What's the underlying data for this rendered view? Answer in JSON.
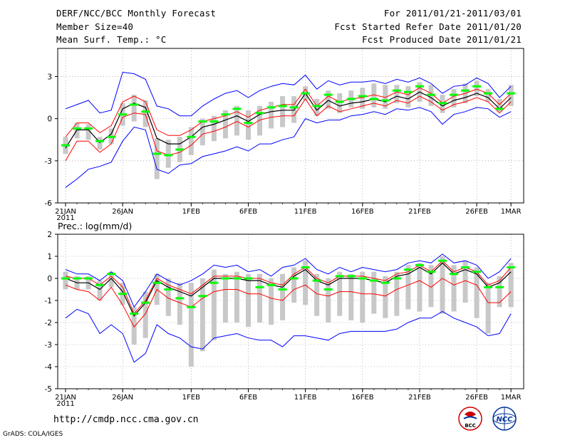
{
  "header": {
    "title": "DERF/NCC/BCC Monthly Forecast",
    "member_size": "Member Size=40",
    "variable": "Mean Surf. Temp.: °C",
    "period": "For 2011/01/21-2011/03/01",
    "start_date": "Fcst Started Refer Date 2011/01/20",
    "produced_date": "Fcst Produced Date 2011/01/21"
  },
  "footer": {
    "url": "http://cmdp.ncc.cma.gov.cn",
    "credit": "GrADS: COLA/IGES",
    "logo_bcc": "BCC",
    "logo_ncc": "NCC"
  },
  "colors": {
    "envelope": "#0000ff",
    "spread": "#ff0000",
    "mean": "#000000",
    "box": "#c8c8c8",
    "median": "#00ff00",
    "grid": "#888888"
  },
  "chart_data": [
    {
      "type": "line",
      "title": "Mean Surf. Temp.: °C",
      "ylim": [
        -6,
        5
      ],
      "yticks": [
        -6,
        -3,
        0,
        3
      ],
      "x_tick_labels": [
        "21JAN",
        "26JAN",
        "1FEB",
        "6FEB",
        "11FEB",
        "16FEB",
        "21FEB",
        "26FEB",
        "1MAR"
      ],
      "x_tick_day_index": [
        0,
        5,
        11,
        16,
        21,
        26,
        31,
        36,
        39
      ],
      "first_tick_year": "2011",
      "days": 40,
      "series": [
        {
          "name": "max",
          "values": [
            0.7,
            1.0,
            1.3,
            0.4,
            0.6,
            3.3,
            3.2,
            2.8,
            0.9,
            0.7,
            0.2,
            0.2,
            0.9,
            1.4,
            1.8,
            2.0,
            1.5,
            2.0,
            2.3,
            2.5,
            2.4,
            3.1,
            2.1,
            2.7,
            2.4,
            2.6,
            2.6,
            2.7,
            2.5,
            2.8,
            2.6,
            2.9,
            2.5,
            1.8,
            2.3,
            2.4,
            2.9,
            2.5,
            1.5,
            2.3
          ]
        },
        {
          "name": "upper",
          "values": [
            -1.3,
            -0.3,
            -0.3,
            -1.0,
            -0.5,
            1.2,
            1.6,
            1.2,
            -0.8,
            -1.2,
            -1.2,
            -0.8,
            -0.2,
            0.0,
            0.2,
            0.5,
            0.1,
            0.6,
            0.8,
            1.0,
            1.0,
            2.1,
            0.9,
            1.6,
            1.2,
            1.4,
            1.5,
            1.7,
            1.5,
            1.9,
            1.7,
            2.2,
            1.8,
            1.1,
            1.6,
            1.8,
            2.1,
            1.8,
            1.0,
            1.8
          ]
        },
        {
          "name": "mean",
          "values": [
            -2.1,
            -0.8,
            -0.8,
            -1.7,
            -1.1,
            0.7,
            1.1,
            0.8,
            -1.4,
            -1.8,
            -1.8,
            -1.3,
            -0.6,
            -0.4,
            -0.1,
            0.2,
            -0.2,
            0.3,
            0.5,
            0.6,
            0.6,
            1.8,
            0.6,
            1.3,
            0.9,
            1.1,
            1.2,
            1.4,
            1.2,
            1.6,
            1.4,
            1.9,
            1.5,
            0.9,
            1.3,
            1.5,
            1.8,
            1.5,
            0.7,
            1.5
          ]
        },
        {
          "name": "lower",
          "values": [
            -3.0,
            -1.6,
            -1.6,
            -2.4,
            -1.8,
            0.1,
            0.4,
            0.3,
            -2.3,
            -2.6,
            -2.4,
            -1.9,
            -1.1,
            -0.9,
            -0.6,
            -0.2,
            -0.6,
            -0.1,
            0.1,
            0.2,
            0.2,
            1.4,
            0.2,
            0.9,
            0.5,
            0.7,
            0.9,
            1.1,
            0.9,
            1.3,
            1.1,
            1.6,
            1.2,
            0.6,
            1.0,
            1.2,
            1.5,
            1.2,
            0.4,
            1.2
          ]
        },
        {
          "name": "min",
          "values": [
            -4.9,
            -4.3,
            -3.6,
            -3.4,
            -3.1,
            -1.6,
            -0.6,
            -0.8,
            -3.6,
            -3.9,
            -3.3,
            -3.2,
            -2.7,
            -2.5,
            -2.3,
            -2.0,
            -2.3,
            -1.8,
            -1.8,
            -1.5,
            -1.3,
            0.0,
            -0.3,
            -0.1,
            -0.1,
            0.2,
            0.3,
            0.5,
            0.3,
            0.7,
            0.6,
            0.8,
            0.5,
            -0.4,
            0.3,
            0.5,
            0.8,
            0.7,
            0.1,
            0.5
          ]
        },
        {
          "name": "box_top",
          "values": [
            -1.3,
            -0.3,
            -0.4,
            -1.3,
            -0.7,
            1.1,
            1.7,
            1.3,
            -1.4,
            -1.5,
            -1.3,
            -0.6,
            0.0,
            0.2,
            0.6,
            0.9,
            0.6,
            0.9,
            1.2,
            1.6,
            1.6,
            2.3,
            1.4,
            2.0,
            1.8,
            2.0,
            2.2,
            2.5,
            2.4,
            2.4,
            2.3,
            2.6,
            2.4,
            1.7,
            2.1,
            2.5,
            2.7,
            2.1,
            1.4,
            2.4
          ]
        },
        {
          "name": "box_bottom",
          "values": [
            -2.5,
            -1.4,
            -1.5,
            -2.2,
            -1.8,
            -0.5,
            -0.2,
            -0.6,
            -4.3,
            -3.5,
            -3.1,
            -2.6,
            -1.9,
            -1.6,
            -1.4,
            -1.2,
            -1.5,
            -1.2,
            -0.7,
            -0.6,
            -0.3,
            1.3,
            0.2,
            0.7,
            0.4,
            0.8,
            0.7,
            0.8,
            0.7,
            1.1,
            0.8,
            1.2,
            0.9,
            0.4,
            0.8,
            1.1,
            1.6,
            1.2,
            0.5,
            0.9
          ]
        },
        {
          "name": "median",
          "values": [
            -1.9,
            -0.7,
            -0.7,
            -1.6,
            -1.3,
            0.3,
            1.0,
            0.5,
            -2.5,
            -2.6,
            -2.2,
            -1.3,
            -0.2,
            -0.2,
            0.3,
            0.7,
            -0.3,
            0.4,
            0.8,
            0.9,
            0.8,
            1.8,
            0.9,
            1.7,
            1.2,
            1.4,
            1.6,
            1.4,
            1.3,
            2.0,
            1.9,
            2.3,
            1.7,
            1.1,
            1.7,
            2.0,
            2.3,
            1.8,
            0.7,
            1.8
          ]
        }
      ]
    },
    {
      "type": "line",
      "title": "Prec.: log(mm/d)",
      "ylim": [
        -5,
        2
      ],
      "yticks": [
        -5,
        -4,
        -3,
        -2,
        -1,
        0,
        1,
        2
      ],
      "x_tick_labels": [
        "21JAN",
        "26JAN",
        "1FEB",
        "6FEB",
        "11FEB",
        "16FEB",
        "21FEB",
        "26FEB",
        "1MAR"
      ],
      "x_tick_day_index": [
        0,
        5,
        11,
        16,
        21,
        26,
        31,
        36,
        39
      ],
      "first_tick_year": "2011",
      "days": 40,
      "series": [
        {
          "name": "max",
          "values": [
            0.4,
            0.2,
            0.2,
            -0.1,
            0.3,
            -0.1,
            -1.3,
            -0.6,
            0.2,
            -0.1,
            -0.3,
            -0.1,
            0.2,
            0.6,
            0.5,
            0.6,
            0.3,
            0.4,
            0.1,
            0.5,
            0.6,
            0.9,
            0.4,
            0.2,
            0.5,
            0.3,
            0.5,
            0.4,
            0.3,
            0.4,
            0.7,
            0.8,
            0.7,
            1.1,
            0.7,
            0.8,
            0.6,
            0.0,
            0.3,
            0.9
          ]
        },
        {
          "name": "upper",
          "values": [
            0.1,
            0.0,
            0.0,
            -0.3,
            0.1,
            -0.4,
            -1.6,
            -1.0,
            0.0,
            -0.3,
            -0.5,
            -0.7,
            -0.3,
            0.1,
            0.1,
            0.1,
            0.0,
            0.0,
            -0.2,
            -0.3,
            0.2,
            0.5,
            0.0,
            -0.2,
            0.1,
            0.1,
            0.1,
            0.0,
            -0.1,
            0.2,
            0.3,
            0.6,
            0.3,
            0.8,
            0.3,
            0.5,
            0.3,
            -0.3,
            -0.1,
            0.5
          ]
        },
        {
          "name": "mean",
          "values": [
            0.0,
            -0.2,
            -0.2,
            -0.5,
            0.0,
            -0.6,
            -1.7,
            -1.1,
            -0.1,
            -0.4,
            -0.6,
            -0.8,
            -0.4,
            0.0,
            0.0,
            0.0,
            -0.1,
            -0.1,
            -0.3,
            -0.4,
            0.1,
            0.4,
            -0.1,
            -0.3,
            0.0,
            0.0,
            0.0,
            -0.1,
            -0.2,
            0.1,
            0.2,
            0.5,
            0.2,
            0.7,
            0.2,
            0.4,
            0.2,
            -0.4,
            -0.2,
            0.3
          ]
        },
        {
          "name": "lower",
          "values": [
            -0.3,
            -0.5,
            -0.6,
            -1.0,
            -0.4,
            -1.2,
            -2.2,
            -1.6,
            -0.5,
            -0.9,
            -1.1,
            -1.3,
            -0.9,
            -0.6,
            -0.5,
            -0.5,
            -0.7,
            -0.7,
            -0.9,
            -1.0,
            -0.5,
            -0.3,
            -0.7,
            -0.8,
            -0.6,
            -0.6,
            -0.7,
            -0.7,
            -0.8,
            -0.5,
            -0.3,
            -0.1,
            -0.4,
            0.0,
            -0.3,
            -0.1,
            -0.3,
            -1.1,
            -1.1,
            -0.6
          ]
        },
        {
          "name": "min",
          "values": [
            -1.8,
            -1.4,
            -1.6,
            -2.5,
            -2.1,
            -2.5,
            -3.8,
            -3.4,
            -2.1,
            -2.5,
            -2.7,
            -3.1,
            -3.2,
            -2.7,
            -2.6,
            -2.5,
            -2.7,
            -2.8,
            -2.8,
            -3.1,
            -2.6,
            -2.6,
            -2.7,
            -2.8,
            -2.5,
            -2.4,
            -2.4,
            -2.4,
            -2.4,
            -2.3,
            -2.0,
            -1.8,
            -1.8,
            -1.5,
            -1.8,
            -2.0,
            -2.2,
            -2.6,
            -2.5,
            -1.6
          ]
        },
        {
          "name": "box_top",
          "values": [
            0.3,
            0.1,
            0.1,
            -0.1,
            0.3,
            -0.2,
            -1.3,
            -0.6,
            0.2,
            0.0,
            -0.2,
            -0.2,
            0.0,
            0.4,
            0.2,
            0.3,
            0.2,
            0.2,
            0.0,
            0.2,
            0.5,
            0.8,
            0.2,
            0.0,
            0.3,
            0.2,
            0.3,
            0.3,
            0.1,
            0.3,
            0.6,
            0.7,
            0.6,
            1.0,
            0.6,
            0.8,
            0.5,
            -0.2,
            0.1,
            0.7
          ]
        },
        {
          "name": "box_bottom",
          "values": [
            -0.5,
            -0.5,
            -0.5,
            -1.0,
            -0.4,
            -1.2,
            -3.0,
            -2.7,
            -1.2,
            -1.7,
            -2.1,
            -4.0,
            -3.3,
            -2.8,
            -2.0,
            -2.0,
            -2.2,
            -2.0,
            -2.1,
            -1.9,
            -1.1,
            -1.2,
            -1.7,
            -2.0,
            -1.7,
            -1.9,
            -2.0,
            -1.6,
            -1.8,
            -1.7,
            -1.4,
            -1.5,
            -1.3,
            -1.6,
            -1.5,
            -1.1,
            -1.8,
            -2.5,
            -1.3,
            -1.3
          ]
        },
        {
          "name": "median",
          "values": [
            0.0,
            0.0,
            0.0,
            -0.3,
            0.2,
            -0.7,
            -1.6,
            -1.1,
            -0.2,
            -0.5,
            -0.9,
            -1.3,
            -0.8,
            -0.2,
            0.0,
            0.0,
            0.0,
            -0.4,
            -0.3,
            -0.5,
            0.0,
            0.5,
            -0.1,
            -0.5,
            0.1,
            0.1,
            0.0,
            -0.1,
            -0.2,
            0.0,
            0.4,
            0.6,
            0.3,
            0.8,
            0.2,
            0.5,
            0.3,
            -0.4,
            -0.4,
            0.5
          ]
        }
      ]
    }
  ]
}
